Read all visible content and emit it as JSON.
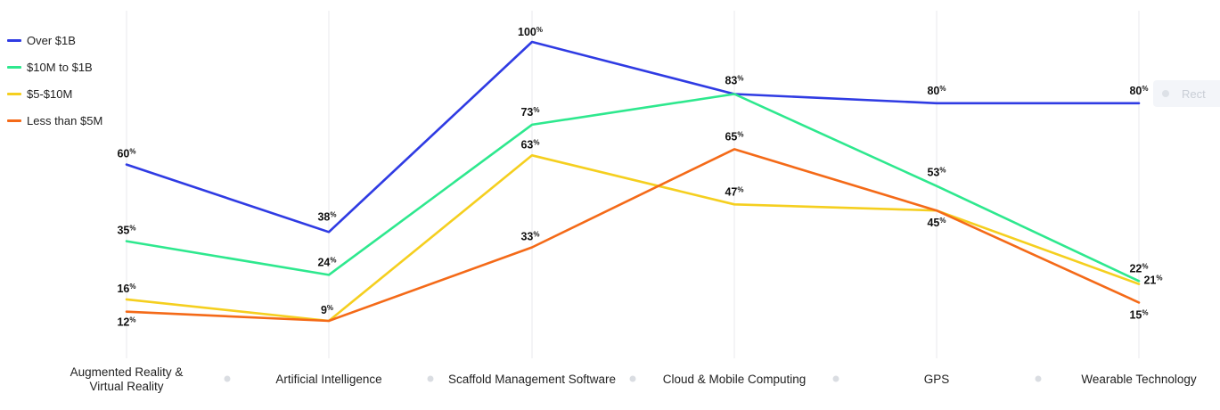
{
  "chart_data": {
    "type": "line",
    "categories": [
      [
        "Augmented Reality &",
        "Virtual Reality"
      ],
      [
        "Artificial Intelligence"
      ],
      [
        "Scaffold Management Software"
      ],
      [
        "Cloud & Mobile Computing"
      ],
      [
        "GPS"
      ],
      [
        "Wearable Technology"
      ]
    ],
    "series": [
      {
        "name": "Over $1B",
        "color": "#2f3be3",
        "values": [
          60,
          38,
          100,
          83,
          80,
          80
        ]
      },
      {
        "name": "$10M to $1B",
        "color": "#2ee88e",
        "values": [
          35,
          24,
          73,
          83,
          53,
          22
        ]
      },
      {
        "name": "$5-$10M",
        "color": "#f5cf1f",
        "values": [
          16,
          9,
          63,
          47,
          45,
          21
        ]
      },
      {
        "name": "Less than $5M",
        "color": "#f46a18",
        "values": [
          12,
          9,
          33,
          65,
          45,
          15
        ]
      }
    ],
    "value_suffix": "%",
    "legend_position": "top-left"
  },
  "overlay": {
    "button_label": "Rect"
  }
}
